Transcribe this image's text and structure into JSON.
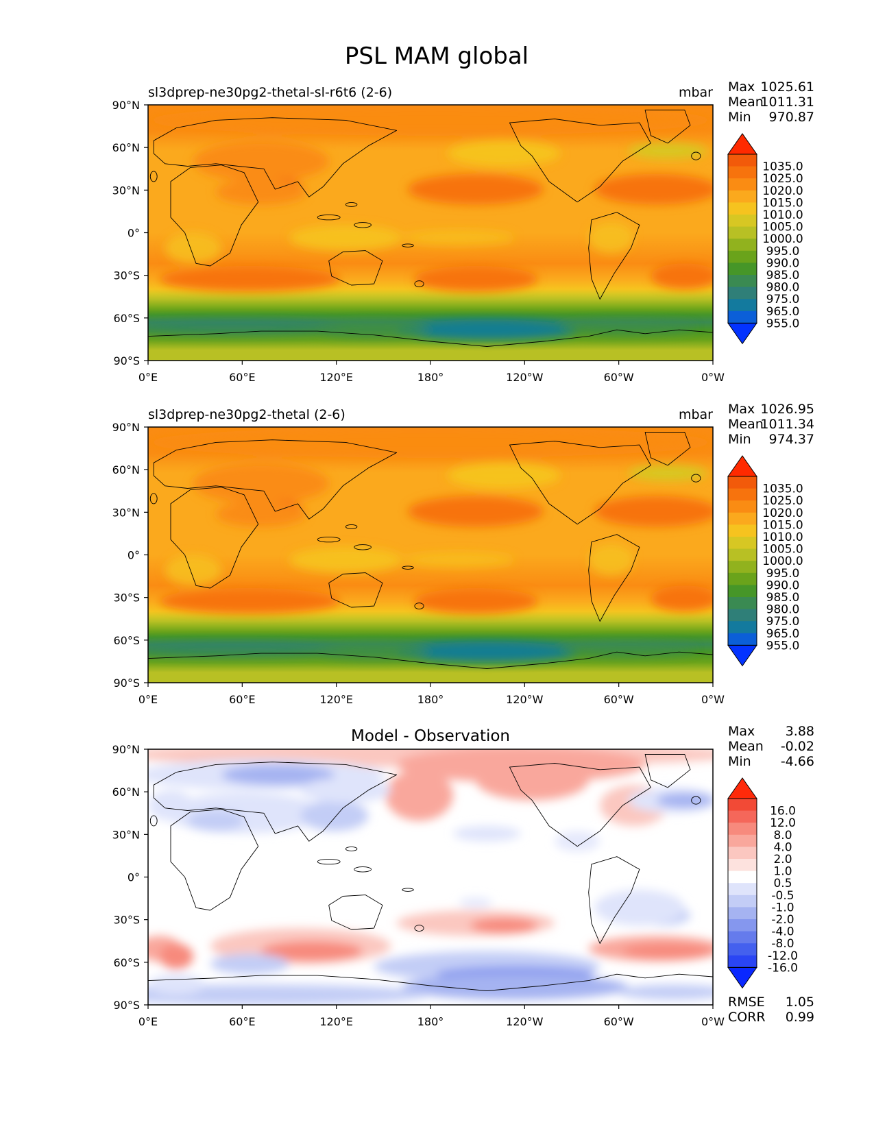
{
  "figure_title": "PSL MAM global",
  "panels": [
    {
      "id": "test",
      "title_left": "sl3dprep-ne30pg2-thetal-sl-r6t6 (2-6)",
      "title_center": "",
      "units": "mbar",
      "stats": [
        {
          "label": "Max",
          "value": "1025.61"
        },
        {
          "label": "Mean",
          "value": "1011.31"
        },
        {
          "label": "Min",
          "value": "970.87"
        }
      ],
      "extra_stats": []
    },
    {
      "id": "reference",
      "title_left": "sl3dprep-ne30pg2-thetal (2-6)",
      "title_center": "",
      "units": "mbar",
      "stats": [
        {
          "label": "Max",
          "value": "1026.95"
        },
        {
          "label": "Mean",
          "value": "1011.34"
        },
        {
          "label": "Min",
          "value": "974.37"
        }
      ],
      "extra_stats": []
    },
    {
      "id": "difference",
      "title_left": "",
      "title_center": "Model - Observation",
      "units": "",
      "stats": [
        {
          "label": "Max",
          "value": "3.88"
        },
        {
          "label": "Mean",
          "value": "-0.02"
        },
        {
          "label": "Min",
          "value": "-4.66"
        }
      ],
      "extra_stats": [
        {
          "label": "RMSE",
          "value": "1.05"
        },
        {
          "label": "CORR",
          "value": "0.99"
        }
      ]
    }
  ],
  "axes": {
    "x_ticks": [
      "0°E",
      "60°E",
      "120°E",
      "180°",
      "120°W",
      "60°W",
      "0°W"
    ],
    "y_ticks": [
      "90°N",
      "60°N",
      "30°N",
      "0°",
      "30°S",
      "60°S",
      "90°S"
    ]
  },
  "colorbars": {
    "field": {
      "labels": [
        "1035.0",
        "1025.0",
        "1020.0",
        "1015.0",
        "1010.0",
        "1005.0",
        "1000.0",
        "995.0",
        "990.0",
        "985.0",
        "980.0",
        "975.0",
        "965.0",
        "955.0"
      ],
      "colors_top_to_bottom": [
        "#ff2a00",
        "#f25a0a",
        "#f7730d",
        "#fa8c13",
        "#fba91d",
        "#f6c31f",
        "#d7c723",
        "#b8c024",
        "#91b21e",
        "#6aa31b",
        "#469628",
        "#3a8a52",
        "#2f7f78",
        "#137a9e",
        "#0b5fd8",
        "#0333ff"
      ]
    },
    "diff": {
      "labels": [
        "16.0",
        "12.0",
        "8.0",
        "4.0",
        "2.0",
        "1.0",
        "0.5",
        "-0.5",
        "-1.0",
        "-2.0",
        "-4.0",
        "-8.0",
        "-12.0",
        "-16.0"
      ],
      "colors_top_to_bottom": [
        "#ff2a0a",
        "#f24a36",
        "#f5675a",
        "#f78a7d",
        "#f9a79c",
        "#fbc7c0",
        "#fde2de",
        "#ffffff",
        "#dfe4fb",
        "#c3cdf6",
        "#a5b3f1",
        "#8597ee",
        "#657bec",
        "#4460ee",
        "#2a45f4",
        "#0a28ff"
      ]
    }
  }
}
